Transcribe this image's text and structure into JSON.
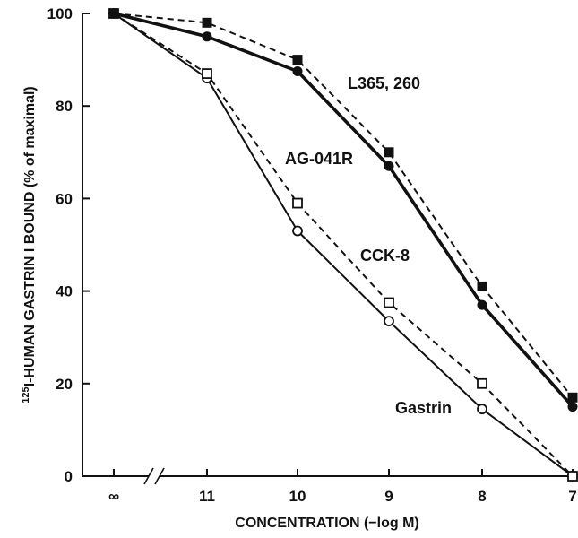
{
  "chart_data": {
    "type": "line",
    "x_categories": [
      "∞",
      "11",
      "10",
      "9",
      "8",
      "7"
    ],
    "xlabel": "CONCENTRATION (−log M)",
    "ylabel_sup": "125",
    "ylabel": "I-HUMAN GASTRIN I BOUND (% of maximal)",
    "ylim": [
      0,
      100
    ],
    "yticks": [
      "0",
      "20",
      "40",
      "60",
      "80",
      "100"
    ],
    "axis_break": "//",
    "grid": false,
    "series": [
      {
        "name": "L365, 260",
        "marker": "filled-square",
        "line": "dashed",
        "color": "#111111",
        "values": [
          100,
          98,
          90,
          70,
          41,
          17
        ]
      },
      {
        "name": "AG-041R",
        "marker": "filled-circle",
        "line": "solid-thick",
        "color": "#111111",
        "values": [
          100,
          95,
          87.5,
          67,
          37,
          15
        ]
      },
      {
        "name": "CCK-8",
        "marker": "open-square",
        "line": "dashed",
        "color": "#111111",
        "values": [
          100,
          87,
          59,
          37.5,
          20,
          0
        ]
      },
      {
        "name": "Gastrin",
        "marker": "open-circle",
        "line": "solid",
        "color": "#111111",
        "values": [
          100,
          86,
          53,
          33.5,
          14.5,
          0
        ]
      }
    ]
  }
}
